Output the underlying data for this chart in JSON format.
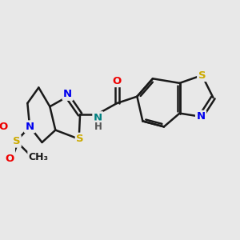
{
  "background_color": "#e8e8e8",
  "bond_color": "#1a1a1a",
  "atom_colors": {
    "S_yellow": "#ccaa00",
    "S_left": "#ccaa00",
    "S_ms": "#ccaa00",
    "N": "#0000ee",
    "O": "#ee0000",
    "teal": "#008080"
  },
  "bond_width": 1.8,
  "figsize": [
    3.0,
    3.0
  ],
  "dpi": 100,
  "xlim": [
    0,
    10
  ],
  "ylim": [
    0,
    10
  ]
}
